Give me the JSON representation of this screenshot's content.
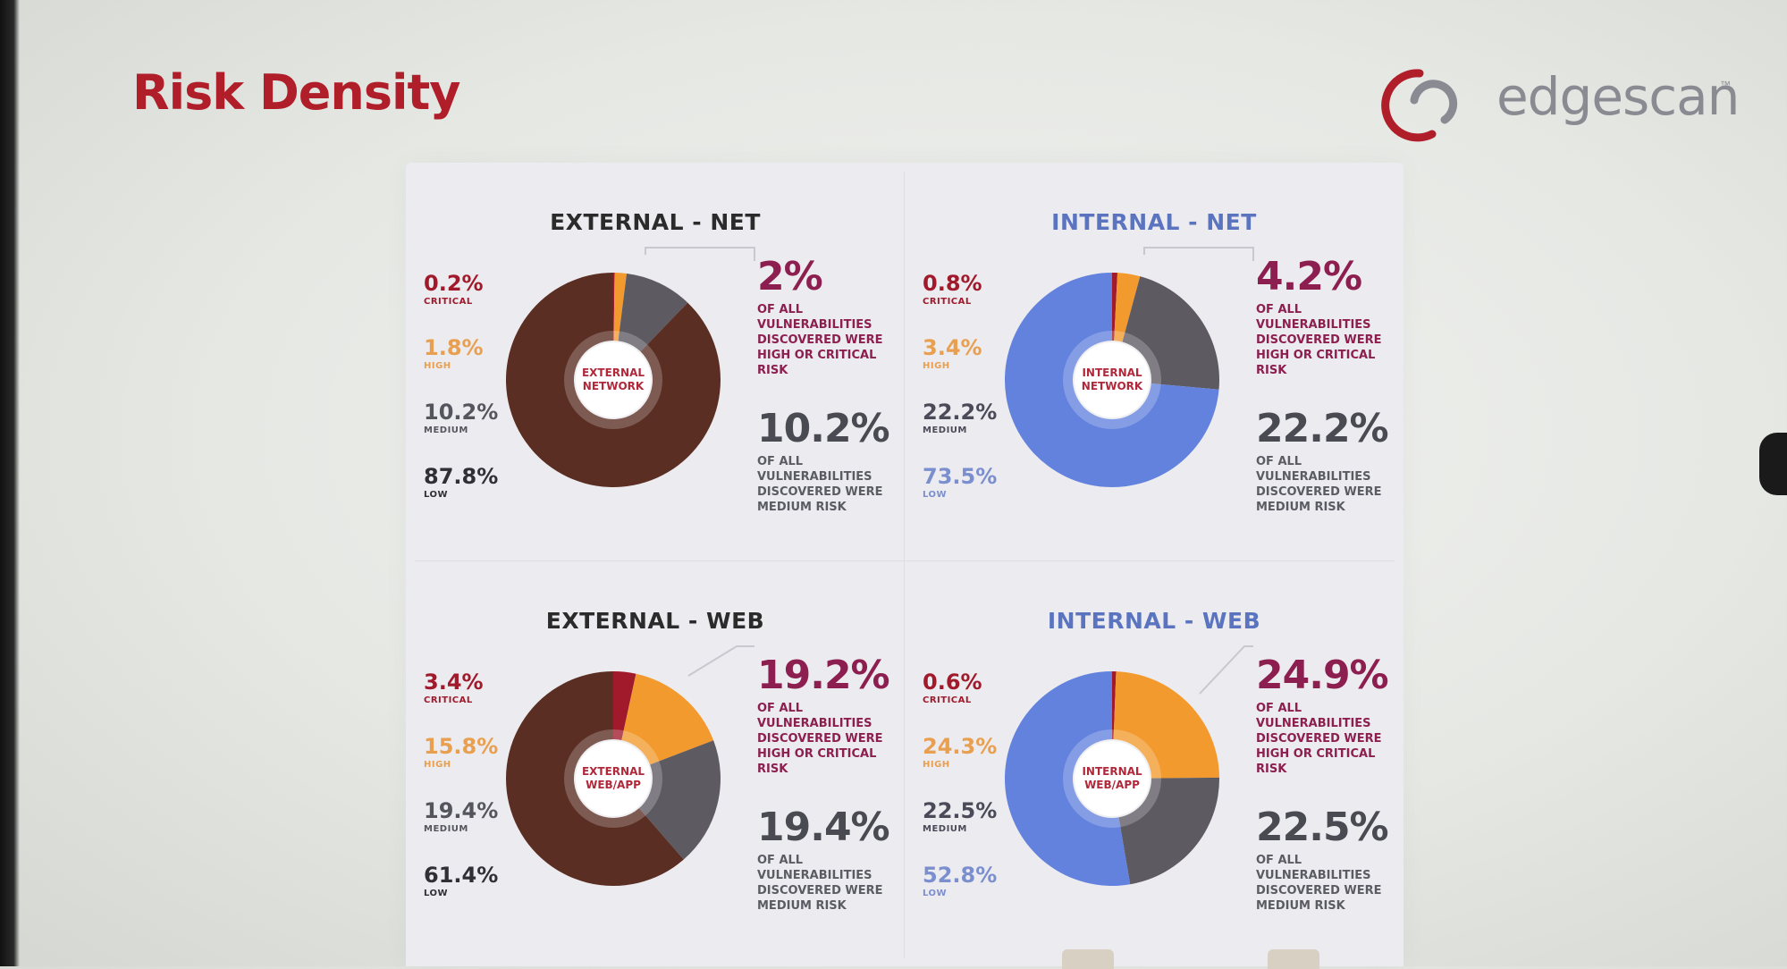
{
  "slide": {
    "title": "Risk Density"
  },
  "logo": {
    "text": "edgescan",
    "tm": "™",
    "colors": {
      "ring": "#b01e2a",
      "arc": "#8a8b92",
      "text": "#8a8b92"
    }
  },
  "colors": {
    "critical": "#a01a2c",
    "high": "#f29a2e",
    "medium": "#5d5a62",
    "low_external": "#5a2e22",
    "low_internal": "#6282de"
  },
  "chart_data": [
    {
      "type": "pie",
      "title": "EXTERNAL - NET",
      "center_label": "EXTERNAL\nNETWORK",
      "categories": [
        "CRITICAL",
        "HIGH",
        "MEDIUM",
        "LOW"
      ],
      "values": [
        0.2,
        1.8,
        10.2,
        87.8
      ],
      "value_labels": [
        "0.2%",
        "1.8%",
        "10.2%",
        "87.8%"
      ],
      "callouts": [
        {
          "value": "2%",
          "text": "OF ALL VULNERABILITIES DISCOVERED WERE HIGH OR CRITICAL RISK"
        },
        {
          "value": "10.2%",
          "text": "OF ALL VULNERABILITIES DISCOVERED WERE MEDIUM RISK"
        }
      ]
    },
    {
      "type": "pie",
      "title": "INTERNAL - NET",
      "center_label": "INTERNAL\nNETWORK",
      "categories": [
        "CRITICAL",
        "HIGH",
        "MEDIUM",
        "LOW"
      ],
      "values": [
        0.8,
        3.4,
        22.2,
        73.5
      ],
      "value_labels": [
        "0.8%",
        "3.4%",
        "22.2%",
        "73.5%"
      ],
      "callouts": [
        {
          "value": "4.2%",
          "text": "OF ALL VULNERABILITIES DISCOVERED WERE HIGH OR CRITICAL RISK"
        },
        {
          "value": "22.2%",
          "text": "OF ALL VULNERABILITIES DISCOVERED WERE MEDIUM RISK"
        }
      ]
    },
    {
      "type": "pie",
      "title": "EXTERNAL - WEB",
      "center_label": "EXTERNAL\nWEB/APP",
      "categories": [
        "CRITICAL",
        "HIGH",
        "MEDIUM",
        "LOW"
      ],
      "values": [
        3.4,
        15.8,
        19.4,
        61.4
      ],
      "value_labels": [
        "3.4%",
        "15.8%",
        "19.4%",
        "61.4%"
      ],
      "callouts": [
        {
          "value": "19.2%",
          "text": "OF ALL VULNERABILITIES DISCOVERED WERE HIGH OR CRITICAL RISK"
        },
        {
          "value": "19.4%",
          "text": "OF ALL VULNERABILITIES DISCOVERED WERE MEDIUM RISK"
        }
      ]
    },
    {
      "type": "pie",
      "title": "INTERNAL - WEB",
      "center_label": "INTERNAL\nWEB/APP",
      "categories": [
        "CRITICAL",
        "HIGH",
        "MEDIUM",
        "LOW"
      ],
      "values": [
        0.6,
        24.3,
        22.5,
        52.8
      ],
      "value_labels": [
        "0.6%",
        "24.3%",
        "22.5%",
        "52.8%"
      ],
      "callouts": [
        {
          "value": "24.9%",
          "text": "OF ALL VULNERABILITIES DISCOVERED WERE HIGH OR CRITICAL RISK"
        },
        {
          "value": "22.5%",
          "text": "OF ALL VULNERABILITIES DISCOVERED WERE MEDIUM RISK"
        }
      ]
    }
  ]
}
